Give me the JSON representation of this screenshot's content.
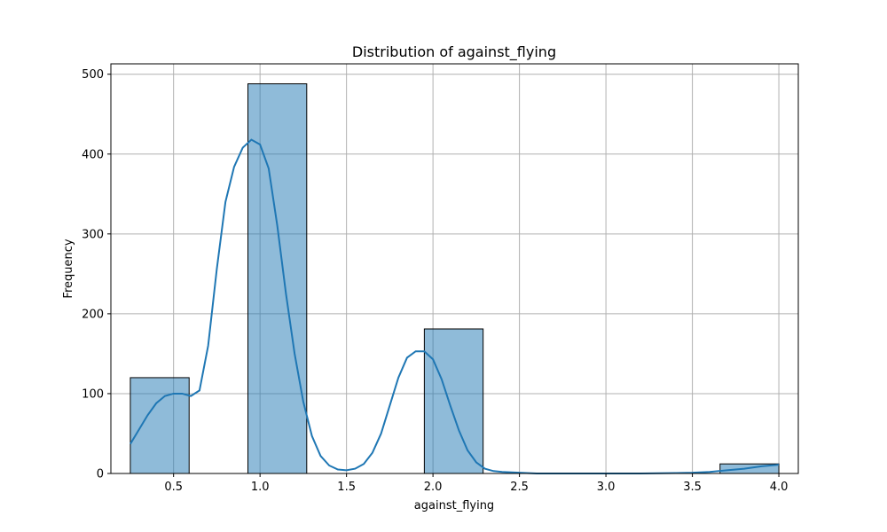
{
  "chart_data": {
    "type": "bar",
    "title": "Distribution of against_flying",
    "xlabel": "against_flying",
    "ylabel": "Frequency",
    "xlim": [
      0.1375,
      4.1125
    ],
    "ylim": [
      0,
      513
    ],
    "x_ticks": [
      0.5,
      1.0,
      1.5,
      2.0,
      2.5,
      3.0,
      3.5,
      4.0
    ],
    "x_tick_labels": [
      "0.5",
      "1.0",
      "1.5",
      "2.0",
      "2.5",
      "3.0",
      "3.5",
      "4.0"
    ],
    "y_ticks": [
      0,
      100,
      200,
      300,
      400,
      500
    ],
    "y_tick_labels": [
      "0",
      "100",
      "200",
      "300",
      "400",
      "500"
    ],
    "grid": true,
    "bars": [
      {
        "x0": 0.25,
        "x1": 0.59,
        "value": 120
      },
      {
        "x0": 0.93,
        "x1": 1.27,
        "value": 488
      },
      {
        "x0": 1.95,
        "x1": 2.29,
        "value": 181
      },
      {
        "x0": 3.66,
        "x1": 4.0,
        "value": 12
      }
    ],
    "kde": {
      "x": [
        0.25,
        0.3,
        0.35,
        0.4,
        0.45,
        0.5,
        0.55,
        0.6,
        0.65,
        0.7,
        0.75,
        0.8,
        0.85,
        0.9,
        0.95,
        1.0,
        1.05,
        1.1,
        1.15,
        1.2,
        1.25,
        1.3,
        1.35,
        1.4,
        1.45,
        1.5,
        1.55,
        1.6,
        1.65,
        1.7,
        1.75,
        1.8,
        1.85,
        1.9,
        1.95,
        2.0,
        2.05,
        2.1,
        2.15,
        2.2,
        2.25,
        2.3,
        2.35,
        2.4,
        2.5,
        2.6,
        2.8,
        3.0,
        3.2,
        3.4,
        3.5,
        3.6,
        3.7,
        3.8,
        3.9,
        4.0
      ],
      "y": [
        37,
        55,
        73,
        88,
        97,
        100,
        100,
        97,
        104,
        160,
        256,
        340,
        384,
        408,
        418,
        412,
        382,
        310,
        225,
        150,
        90,
        47,
        22,
        10,
        5,
        4,
        6,
        12,
        26,
        50,
        85,
        120,
        145,
        153,
        153,
        143,
        118,
        85,
        54,
        29,
        14,
        6,
        3,
        2,
        1,
        0,
        0,
        0,
        0,
        0.5,
        1,
        2,
        4,
        6,
        9,
        11
      ]
    },
    "colors": {
      "bar_fill": "#1f77b4",
      "bar_edge": "#000000",
      "line": "#1f77b4",
      "grid": "#b0b0b0"
    }
  }
}
